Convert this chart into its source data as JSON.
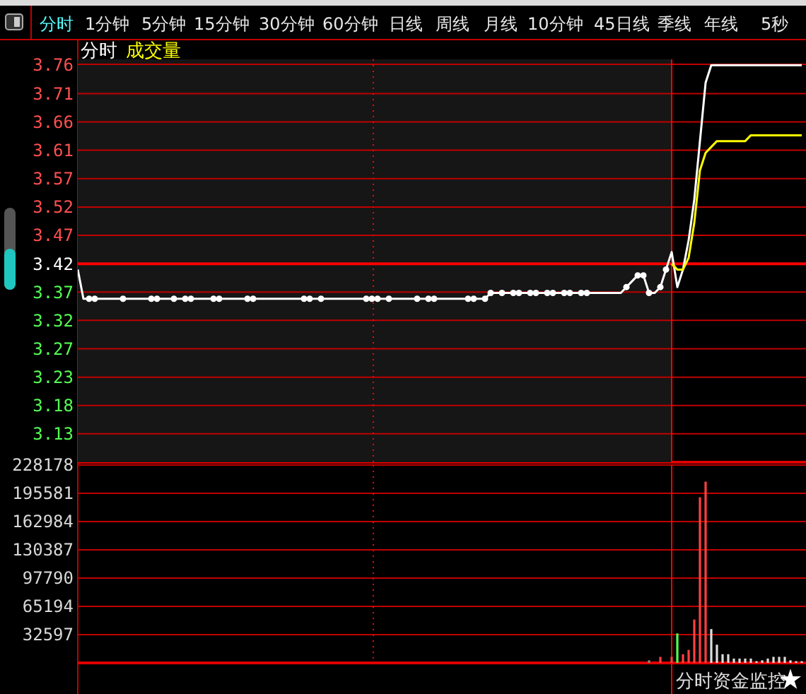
{
  "chart_data": [
    {
      "type": "line",
      "title": "分时",
      "subtitle": "成交量",
      "ylim": [
        3.08,
        3.77
      ],
      "tick_labels": "y",
      "grid": "y",
      "categories": [
        null,
        null,
        null,
        null,
        null,
        null,
        null,
        null,
        null,
        null,
        null,
        null,
        null,
        null,
        null,
        null,
        null,
        null,
        null,
        null,
        null,
        null,
        null,
        null,
        null,
        null,
        null,
        null,
        null,
        null,
        null,
        null,
        null,
        null,
        null,
        null,
        null,
        null,
        null,
        null,
        null,
        null,
        null,
        null,
        null,
        null,
        null,
        null,
        null,
        null,
        null,
        null,
        null,
        null,
        null,
        null,
        null,
        null,
        null,
        null,
        null,
        null,
        null,
        null,
        null,
        null,
        null,
        null,
        null,
        null,
        null,
        null,
        null,
        null,
        null,
        null,
        null,
        null,
        null,
        null,
        null,
        null,
        null,
        null,
        null,
        null,
        null,
        null,
        null,
        null,
        null,
        null,
        null,
        null,
        null,
        null,
        null,
        null,
        null,
        null,
        null,
        null,
        null,
        null,
        null,
        null,
        null,
        null,
        null,
        null,
        null,
        null,
        null,
        null,
        null,
        null,
        null,
        null,
        null,
        null,
        null,
        null,
        null,
        null,
        null,
        null,
        null,
        null,
        null
      ],
      "yticks": [
        {
          "value": 3.7614,
          "label": "3.76"
        },
        {
          "value": 3.7114,
          "label": "3.71"
        },
        {
          "value": 3.6629,
          "label": "3.66"
        },
        {
          "value": 3.6143,
          "label": "3.61"
        },
        {
          "value": 3.5657,
          "label": "3.57"
        },
        {
          "value": 3.5171,
          "label": "3.52"
        },
        {
          "value": 3.4686,
          "label": "3.47"
        },
        {
          "value": 3.42,
          "label": "3.42"
        },
        {
          "value": 3.3714,
          "label": "3.37"
        },
        {
          "value": 3.3229,
          "label": "3.32"
        },
        {
          "value": 3.2743,
          "label": "3.27"
        },
        {
          "value": 3.2257,
          "label": "3.23"
        },
        {
          "value": 3.1771,
          "label": "3.18"
        },
        {
          "value": 3.1286,
          "label": "3.13"
        }
      ],
      "ref_lines": [
        {
          "axis": "y",
          "value": 3.42,
          "color": "#ff0000"
        }
      ],
      "series": [
        {
          "type": "line",
          "color": "#ffffff",
          "values": [
            3.41,
            3.36,
            3.36,
            3.36,
            3.36,
            3.36,
            3.36,
            3.36,
            3.36,
            3.36,
            3.36,
            3.36,
            3.36,
            3.36,
            3.36,
            3.36,
            3.36,
            3.36,
            3.36,
            3.36,
            3.36,
            3.36,
            3.36,
            3.36,
            3.36,
            3.36,
            3.36,
            3.36,
            3.36,
            3.36,
            3.36,
            3.36,
            3.36,
            3.36,
            3.36,
            3.36,
            3.36,
            3.36,
            3.36,
            3.36,
            3.36,
            3.36,
            3.36,
            3.36,
            3.36,
            3.36,
            3.36,
            3.36,
            3.36,
            3.36,
            3.36,
            3.36,
            3.36,
            3.36,
            3.36,
            3.36,
            3.36,
            3.36,
            3.36,
            3.36,
            3.36,
            3.36,
            3.36,
            3.36,
            3.36,
            3.36,
            3.36,
            3.36,
            3.36,
            3.36,
            3.36,
            3.36,
            3.36,
            3.37,
            3.37,
            3.37,
            3.37,
            3.37,
            3.37,
            3.37,
            3.37,
            3.37,
            3.37,
            3.37,
            3.37,
            3.37,
            3.37,
            3.37,
            3.37,
            3.37,
            3.37,
            3.37,
            3.37,
            3.37,
            3.37,
            3.37,
            3.37,
            3.38,
            3.39,
            3.4,
            3.4,
            3.37,
            3.37,
            3.38,
            3.41,
            3.44,
            3.38,
            3.41,
            3.46,
            3.53,
            3.63,
            3.73,
            3.76,
            3.76,
            3.76,
            3.76,
            3.76,
            3.76,
            3.76,
            3.76,
            3.76,
            3.76,
            3.76,
            3.76,
            3.76,
            3.76,
            3.76,
            3.76,
            3.76
          ]
        },
        {
          "type": "line",
          "color": "#ffff00",
          "values": [
            null,
            null,
            null,
            null,
            null,
            null,
            null,
            null,
            null,
            null,
            null,
            null,
            null,
            null,
            null,
            null,
            null,
            null,
            null,
            null,
            null,
            null,
            null,
            null,
            null,
            null,
            null,
            null,
            null,
            null,
            null,
            null,
            null,
            null,
            null,
            null,
            null,
            null,
            null,
            null,
            null,
            null,
            null,
            null,
            null,
            null,
            null,
            null,
            null,
            null,
            null,
            null,
            null,
            null,
            null,
            null,
            null,
            null,
            null,
            null,
            null,
            null,
            null,
            null,
            null,
            null,
            null,
            null,
            null,
            null,
            null,
            null,
            null,
            null,
            null,
            null,
            null,
            null,
            null,
            null,
            null,
            null,
            null,
            null,
            null,
            null,
            null,
            null,
            null,
            null,
            null,
            null,
            null,
            null,
            null,
            null,
            null,
            null,
            null,
            null,
            null,
            null,
            null,
            null,
            null,
            3.42,
            3.41,
            3.41,
            3.43,
            3.49,
            3.58,
            3.61,
            3.62,
            3.63,
            3.63,
            3.63,
            3.63,
            3.63,
            3.63,
            3.64,
            3.64,
            3.64,
            3.64,
            3.64,
            3.64,
            3.64,
            3.64,
            3.64,
            3.64
          ]
        },
        {
          "type": "scatter",
          "color": "#ffffff",
          "marker": "circle",
          "values": [
            null,
            null,
            3.36,
            3.36,
            null,
            null,
            null,
            null,
            3.36,
            null,
            null,
            null,
            null,
            3.36,
            3.36,
            null,
            null,
            3.36,
            null,
            3.36,
            3.36,
            null,
            null,
            null,
            3.36,
            3.36,
            null,
            null,
            null,
            null,
            3.36,
            3.36,
            null,
            null,
            null,
            null,
            null,
            null,
            null,
            null,
            3.36,
            3.36,
            null,
            3.36,
            null,
            null,
            null,
            null,
            null,
            null,
            null,
            3.36,
            3.36,
            3.36,
            null,
            3.36,
            null,
            null,
            null,
            null,
            3.36,
            null,
            3.36,
            3.36,
            null,
            null,
            null,
            null,
            null,
            3.36,
            3.36,
            null,
            3.36,
            3.37,
            null,
            3.37,
            null,
            3.37,
            3.37,
            null,
            3.37,
            3.37,
            null,
            3.37,
            3.37,
            null,
            3.37,
            3.37,
            null,
            3.37,
            3.37,
            null,
            null,
            null,
            null,
            null,
            null,
            3.38,
            null,
            3.4,
            3.4,
            3.37,
            null,
            3.38,
            3.41,
            null,
            null,
            null,
            null,
            null,
            null,
            null,
            null,
            null,
            null,
            null,
            null,
            null,
            null,
            null,
            null,
            null,
            null,
            null,
            null,
            null,
            null,
            null,
            null
          ]
        }
      ]
    },
    {
      "type": "bar",
      "ylim": [
        0,
        228178
      ],
      "yticks": [
        32597,
        65194,
        97790,
        130387,
        162984,
        195581,
        228178
      ],
      "tick_labels": "y",
      "grid": "y",
      "annotations": [
        "分时资金监控"
      ],
      "categories": [
        null,
        null,
        null,
        null,
        null,
        null,
        null,
        null,
        null,
        null,
        null,
        null,
        null,
        null,
        null,
        null,
        null,
        null,
        null,
        null,
        null,
        null,
        null,
        null,
        null,
        null,
        null,
        null,
        null,
        null,
        null,
        null,
        null,
        null,
        null,
        null,
        null,
        null,
        null,
        null,
        null,
        null,
        null,
        null,
        null,
        null,
        null,
        null,
        null,
        null,
        null,
        null,
        null,
        null,
        null,
        null,
        null,
        null,
        null,
        null,
        null,
        null,
        null,
        null,
        null,
        null,
        null,
        null,
        null,
        null,
        null,
        null,
        null,
        null,
        null,
        null,
        null,
        null,
        null,
        null,
        null,
        null,
        null,
        null,
        null,
        null,
        null,
        null,
        null,
        null,
        null,
        null,
        null,
        null,
        null,
        null,
        null,
        null,
        null,
        null,
        null,
        null,
        null,
        null,
        null,
        null,
        null,
        null,
        null,
        null,
        null,
        null,
        null,
        null,
        null,
        null,
        null,
        null,
        null,
        null,
        null,
        null,
        null,
        null,
        null,
        null,
        null,
        null,
        null
      ],
      "values": [
        null,
        null,
        null,
        null,
        null,
        null,
        null,
        null,
        null,
        null,
        null,
        null,
        null,
        null,
        null,
        null,
        null,
        null,
        null,
        null,
        null,
        null,
        null,
        null,
        null,
        null,
        null,
        null,
        null,
        null,
        null,
        null,
        null,
        null,
        null,
        null,
        null,
        null,
        null,
        null,
        null,
        null,
        null,
        null,
        null,
        null,
        null,
        null,
        null,
        null,
        null,
        null,
        null,
        null,
        null,
        null,
        null,
        null,
        null,
        null,
        null,
        null,
        null,
        null,
        null,
        null,
        null,
        null,
        null,
        null,
        null,
        null,
        null,
        null,
        null,
        null,
        null,
        null,
        null,
        null,
        null,
        null,
        null,
        null,
        null,
        null,
        null,
        null,
        null,
        null,
        null,
        null,
        null,
        null,
        null,
        null,
        null,
        null,
        null,
        null,
        null,
        3000,
        null,
        7000,
        null,
        7000,
        34000,
        10000,
        15000,
        50000,
        191000,
        209000,
        39000,
        21000,
        10000,
        10000,
        5000,
        5000,
        5000,
        5000,
        2000,
        3000,
        5000,
        7000,
        7000,
        7000,
        3000,
        2000,
        2000
      ],
      "colors": [
        null,
        null,
        null,
        null,
        null,
        null,
        null,
        null,
        null,
        null,
        null,
        null,
        null,
        null,
        null,
        null,
        null,
        null,
        null,
        null,
        null,
        null,
        null,
        null,
        null,
        null,
        null,
        null,
        null,
        null,
        null,
        null,
        null,
        null,
        null,
        null,
        null,
        null,
        null,
        null,
        null,
        null,
        null,
        null,
        null,
        null,
        null,
        null,
        null,
        null,
        null,
        null,
        null,
        null,
        null,
        null,
        null,
        null,
        null,
        null,
        null,
        null,
        null,
        null,
        null,
        null,
        null,
        null,
        null,
        null,
        null,
        null,
        null,
        null,
        null,
        null,
        null,
        null,
        null,
        null,
        null,
        null,
        null,
        null,
        null,
        null,
        null,
        null,
        null,
        null,
        null,
        null,
        null,
        null,
        null,
        null,
        null,
        null,
        null,
        null,
        null,
        "#888888",
        null,
        "#ff4040",
        null,
        "#ff4040",
        "#54ff54",
        "#ff4040",
        "#ff4040",
        "#ff4040",
        "#ff4040",
        "#ff4040",
        "#dddddd",
        "#dddddd",
        "#dddddd",
        "#dddddd",
        "#dddddd",
        "#dddddd",
        "#dddddd",
        "#dddddd",
        "#dddddd",
        "#dddddd",
        "#dddddd",
        "#dddddd",
        "#dddddd",
        "#dddddd",
        "#dddddd",
        "#dddddd",
        "#dddddd"
      ]
    },
    {
      "type": "other",
      "annotations": [
        "分时",
        "1分钟",
        "5分钟",
        "15分钟",
        "30分钟",
        "60分钟",
        "日线",
        "周线",
        "月线",
        "10分钟",
        "45日线",
        "季线",
        "年线",
        "5秒"
      ]
    }
  ]
}
